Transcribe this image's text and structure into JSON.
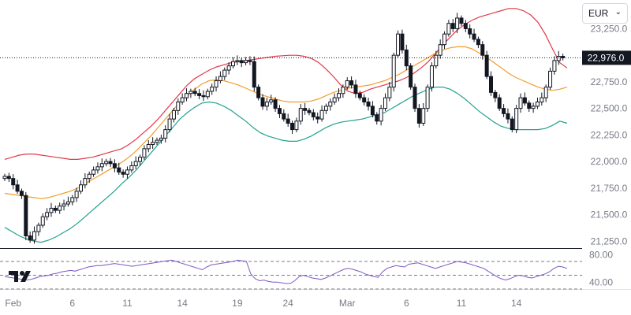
{
  "currency_selector": {
    "value": "EUR",
    "chevron_icon": "chevron-down-icon"
  },
  "logo_icon": "tradingview-logo-icon",
  "colors": {
    "up": "#ffffff",
    "down": "#131722",
    "upper_band": "#e0394a",
    "lower_band": "#22a28f",
    "middle_band": "#f39c2c",
    "rsi": "#7e57c2",
    "price_line": "#131722",
    "grid_text": "#787b86"
  },
  "chart_data": [
    {
      "type": "candlestick",
      "title": "",
      "ylim": [
        21200,
        23520
      ],
      "y_ticks": [
        "21,250.0",
        "21,500.0",
        "21,750.0",
        "22,000.0",
        "22,250.0",
        "22,500.0",
        "22,750.0",
        "23,000.0",
        "23,250.0"
      ],
      "x_tick_labels": [
        "Feb",
        "6",
        "11",
        "14",
        "19",
        "24",
        "Mar",
        "6",
        "11",
        "14"
      ],
      "last_price_label": "22,976.0",
      "last_price": 22976,
      "closes": [
        21860,
        21840,
        21780,
        21720,
        21680,
        21300,
        21260,
        21340,
        21400,
        21480,
        21520,
        21560,
        21540,
        21580,
        21600,
        21620,
        21660,
        21720,
        21780,
        21840,
        21880,
        21920,
        21950,
        21980,
        22000,
        21980,
        21940,
        21900,
        21880,
        21920,
        21960,
        22000,
        22040,
        22120,
        22160,
        22180,
        22200,
        22220,
        22300,
        22400,
        22480,
        22560,
        22600,
        22640,
        22660,
        22640,
        22620,
        22610,
        22660,
        22700,
        22760,
        22800,
        22860,
        22900,
        22940,
        22950,
        22930,
        22950,
        22940,
        22700,
        22600,
        22520,
        22560,
        22580,
        22500,
        22450,
        22400,
        22360,
        22300,
        22380,
        22500,
        22480,
        22460,
        22420,
        22400,
        22480,
        22520,
        22560,
        22600,
        22640,
        22700,
        22760,
        22720,
        22640,
        22600,
        22560,
        22520,
        22440,
        22380,
        22500,
        22600,
        22700,
        23000,
        23200,
        23050,
        22900,
        22700,
        22500,
        22360,
        22500,
        22700,
        22900,
        23000,
        23100,
        23200,
        23300,
        23250,
        23350,
        23300,
        23250,
        23200,
        23150,
        23100,
        23000,
        22800,
        22650,
        22600,
        22500,
        22450,
        22400,
        22300,
        22500,
        22600,
        22550,
        22500,
        22520,
        22560,
        22600,
        22700,
        22850,
        22950,
        22990,
        22976
      ],
      "bollinger": {
        "upper_label": "",
        "lower_label": "",
        "middle_label": "",
        "upper": [
          22020,
          22040,
          22060,
          22070,
          22070,
          22060,
          22050,
          22040,
          22030,
          22020,
          22020,
          22030,
          22040,
          22060,
          22080,
          22100,
          22120,
          22160,
          22210,
          22270,
          22330,
          22400,
          22480,
          22560,
          22640,
          22720,
          22780,
          22820,
          22860,
          22890,
          22910,
          22930,
          22940,
          22950,
          22960,
          22970,
          22980,
          22990,
          22995,
          23000,
          23000,
          22990,
          22970,
          22930,
          22870,
          22800,
          22720,
          22660,
          22640,
          22650,
          22680,
          22700,
          22720,
          22740,
          22760,
          22790,
          22830,
          22880,
          22940,
          23020,
          23100,
          23170,
          23240,
          23290,
          23330,
          23360,
          23380,
          23400,
          23420,
          23440,
          23440,
          23420,
          23380,
          23310,
          23200,
          23060,
          22930,
          22880
        ],
        "middle": [
          21700,
          21690,
          21680,
          21670,
          21660,
          21650,
          21660,
          21680,
          21700,
          21720,
          21750,
          21790,
          21830,
          21870,
          21910,
          21950,
          21990,
          22040,
          22100,
          22170,
          22240,
          22320,
          22400,
          22480,
          22560,
          22620,
          22680,
          22730,
          22760,
          22770,
          22760,
          22740,
          22720,
          22690,
          22660,
          22630,
          22610,
          22590,
          22570,
          22560,
          22560,
          22560,
          22570,
          22590,
          22620,
          22650,
          22670,
          22690,
          22700,
          22710,
          22720,
          22740,
          22760,
          22790,
          22820,
          22860,
          22900,
          22940,
          22980,
          23020,
          23050,
          23070,
          23080,
          23080,
          23060,
          23020,
          22980,
          22930,
          22880,
          22830,
          22790,
          22760,
          22730,
          22700,
          22680,
          22670,
          22680,
          22700
        ],
        "lower": [
          21380,
          21340,
          21300,
          21270,
          21250,
          21240,
          21260,
          21290,
          21330,
          21370,
          21420,
          21480,
          21540,
          21600,
          21660,
          21720,
          21790,
          21850,
          21920,
          22000,
          22080,
          22160,
          22240,
          22320,
          22400,
          22460,
          22510,
          22550,
          22560,
          22550,
          22520,
          22480,
          22430,
          22380,
          22320,
          22270,
          22240,
          22220,
          22200,
          22190,
          22190,
          22210,
          22240,
          22280,
          22320,
          22350,
          22370,
          22380,
          22390,
          22400,
          22420,
          22440,
          22460,
          22500,
          22540,
          22580,
          22620,
          22650,
          22680,
          22700,
          22700,
          22680,
          22640,
          22590,
          22530,
          22470,
          22420,
          22370,
          22330,
          22310,
          22300,
          22300,
          22300,
          22300,
          22310,
          22340,
          22380,
          22360
        ]
      }
    },
    {
      "type": "line",
      "title": "",
      "y_ticks": [
        "80.00",
        "40.00"
      ],
      "ylim": [
        30,
        86
      ],
      "levels": [
        70,
        50,
        30
      ],
      "values": [
        48,
        47,
        46,
        45,
        44,
        43,
        44,
        46,
        48,
        49,
        50,
        52,
        53,
        55,
        56,
        57,
        56,
        58,
        60,
        62,
        63,
        64,
        64,
        65,
        66,
        67,
        66,
        65,
        64,
        63,
        64,
        65,
        66,
        67,
        68,
        69,
        70,
        71,
        72,
        70,
        68,
        66,
        64,
        62,
        60,
        58,
        62,
        65,
        66,
        67,
        68,
        69,
        70,
        72,
        71,
        70,
        52,
        45,
        42,
        43,
        41,
        40,
        40,
        39,
        38,
        38,
        42,
        48,
        50,
        48,
        46,
        45,
        44,
        46,
        49,
        52,
        55,
        58,
        60,
        59,
        57,
        55,
        52,
        50,
        48,
        47,
        55,
        60,
        62,
        64,
        63,
        62,
        66,
        67,
        68,
        66,
        64,
        62,
        60,
        62,
        64,
        66,
        68,
        70,
        69,
        68,
        66,
        64,
        62,
        60,
        56,
        52,
        48,
        45,
        43,
        45,
        48,
        50,
        49,
        47,
        46,
        48,
        50,
        52,
        55,
        60,
        63,
        62,
        60
      ]
    }
  ]
}
